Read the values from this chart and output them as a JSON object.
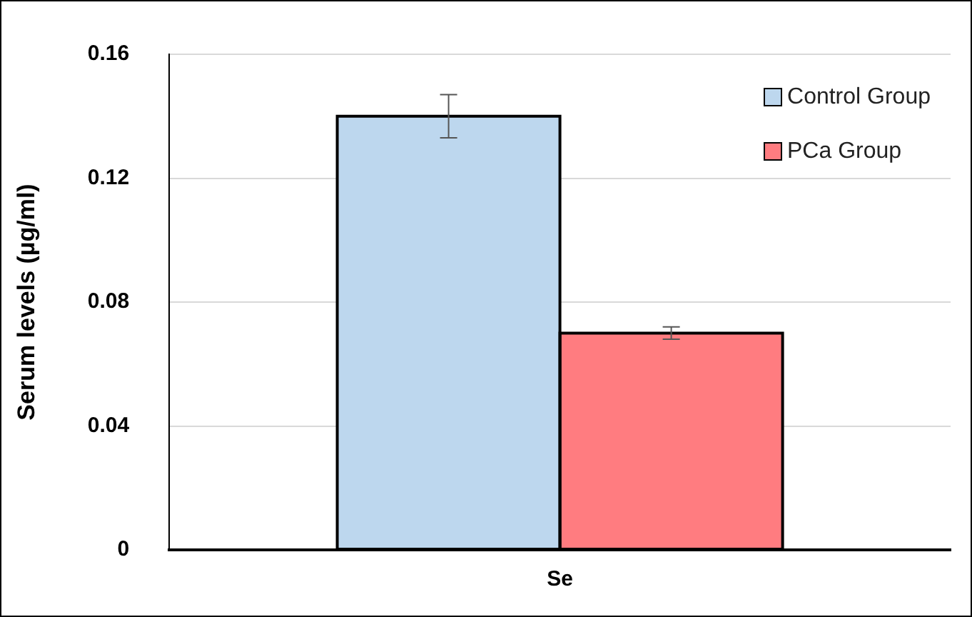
{
  "chart_data": {
    "type": "bar",
    "ylabel": "Serum levels (µg/ml)",
    "categories": [
      "Se"
    ],
    "series": [
      {
        "name": "Control Group",
        "color": "#bdd7ee",
        "values": [
          0.14
        ],
        "errors": [
          0.007
        ]
      },
      {
        "name": "PCa Group",
        "color": "#ff7c80",
        "values": [
          0.07
        ],
        "errors": [
          0.002
        ]
      }
    ],
    "ylim": [
      0,
      0.16
    ],
    "yticks": [
      0,
      0.04,
      0.08,
      0.12,
      0.16
    ],
    "grid": "y",
    "legend": "top right"
  }
}
